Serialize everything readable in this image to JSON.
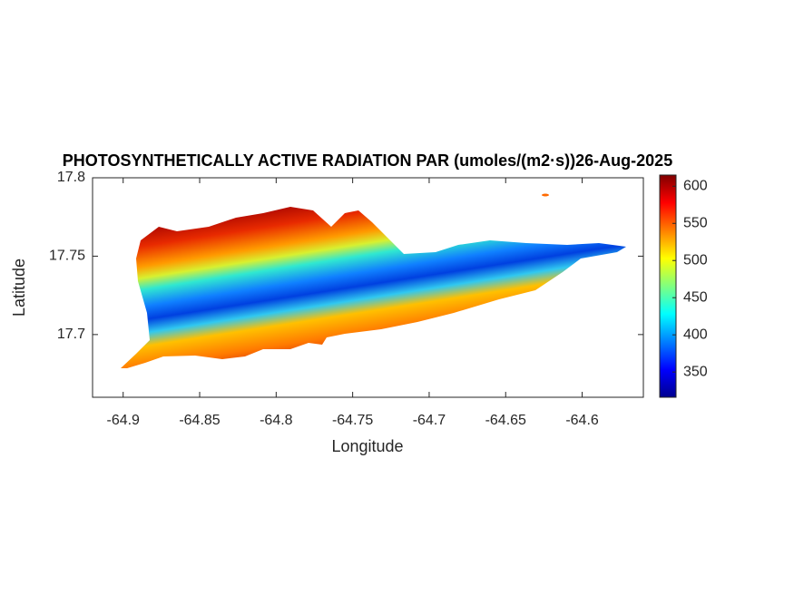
{
  "chart_data": {
    "type": "map",
    "title": "PHOTOSYNTHETICALLY ACTIVE RADIATION PAR (umoles/(m2·s))26-Aug-2025",
    "x_label": "Longitude",
    "y_label": "Latitude",
    "xlim": [
      -64.92,
      -64.56
    ],
    "ylim": [
      17.66,
      17.8
    ],
    "xticks": [
      -64.9,
      -64.85,
      -64.8,
      -64.75,
      -64.7,
      -64.65,
      -64.6
    ],
    "yticks": [
      17.7,
      17.75,
      17.8
    ],
    "colorbar": {
      "colormap": "jet",
      "clim": [
        316,
        615
      ],
      "ticks": [
        350,
        400,
        450,
        500,
        550,
        600
      ]
    }
  }
}
